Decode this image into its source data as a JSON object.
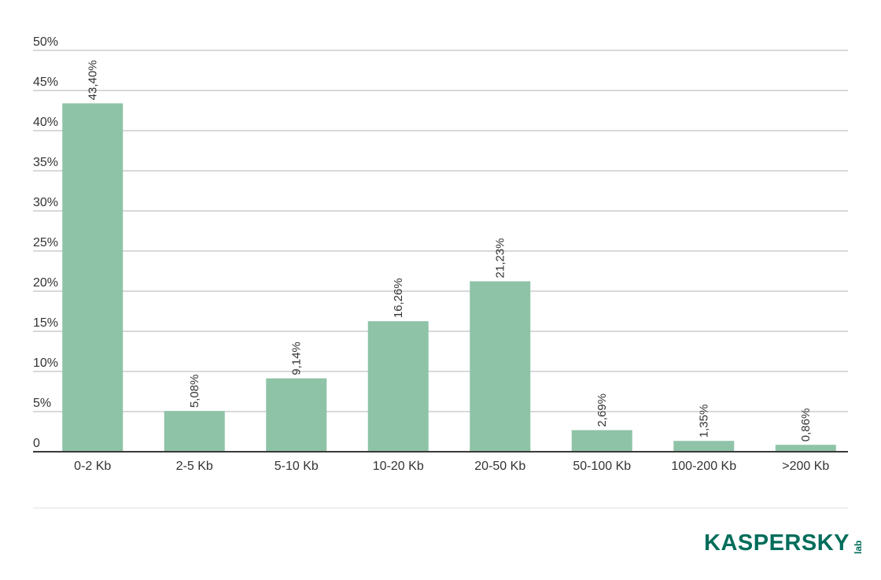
{
  "chart_data": {
    "type": "bar",
    "categories": [
      "0-2 Kb",
      "2-5 Kb",
      "5-10 Kb",
      "10-20 Kb",
      "20-50 Kb",
      "50-100 Kb",
      "100-200 Kb",
      ">200 Kb"
    ],
    "values": [
      43.4,
      5.08,
      9.14,
      16.26,
      21.23,
      2.69,
      1.35,
      0.86
    ],
    "data_labels": [
      "43,40%",
      "5,08%",
      "9,14%",
      "16,26%",
      "21,23%",
      "2,69%",
      "1,35%",
      "0,86%"
    ],
    "yticks": [
      0,
      5,
      10,
      15,
      20,
      25,
      30,
      35,
      40,
      45,
      50
    ],
    "ytick_labels": [
      "0",
      "5%",
      "10%",
      "15%",
      "20%",
      "25%",
      "30%",
      "35%",
      "40%",
      "45%",
      "50%"
    ],
    "ylim": [
      0,
      50
    ],
    "grid": true,
    "bar_color": "#8ec3a7",
    "title": "",
    "xlabel": "",
    "ylabel": ""
  },
  "logo": {
    "word": "KASPERSKY",
    "suffix": "lab",
    "color": "#006d5b"
  }
}
